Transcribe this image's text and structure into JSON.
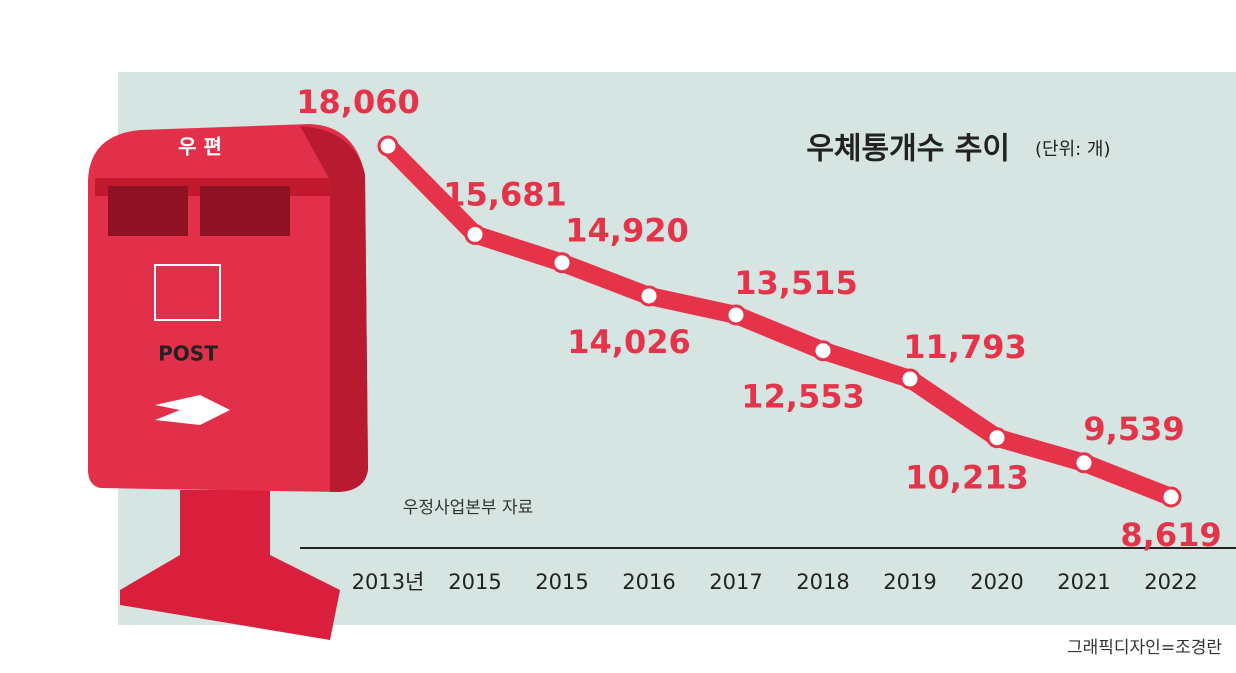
{
  "chart_data": {
    "type": "line",
    "title": "우체통개수 추이",
    "unit": "(단위: 개)",
    "source": "우정사업본부 자료",
    "credit": "그래픽디자인=조경란",
    "illustration": {
      "top_label": "우 편",
      "label": "POST"
    },
    "categories": [
      "2013년",
      "2015",
      "2015",
      "2016",
      "2017",
      "2018",
      "2019",
      "2020",
      "2021",
      "2022"
    ],
    "values": [
      18060,
      15681,
      14920,
      14026,
      13515,
      12553,
      11793,
      10213,
      9539,
      8619
    ],
    "value_labels": [
      "18,060",
      "15,681",
      "14,920",
      "14,026",
      "13,515",
      "12,553",
      "11,793",
      "10,213",
      "9,539",
      "8,619"
    ],
    "color": "#e5344a"
  }
}
